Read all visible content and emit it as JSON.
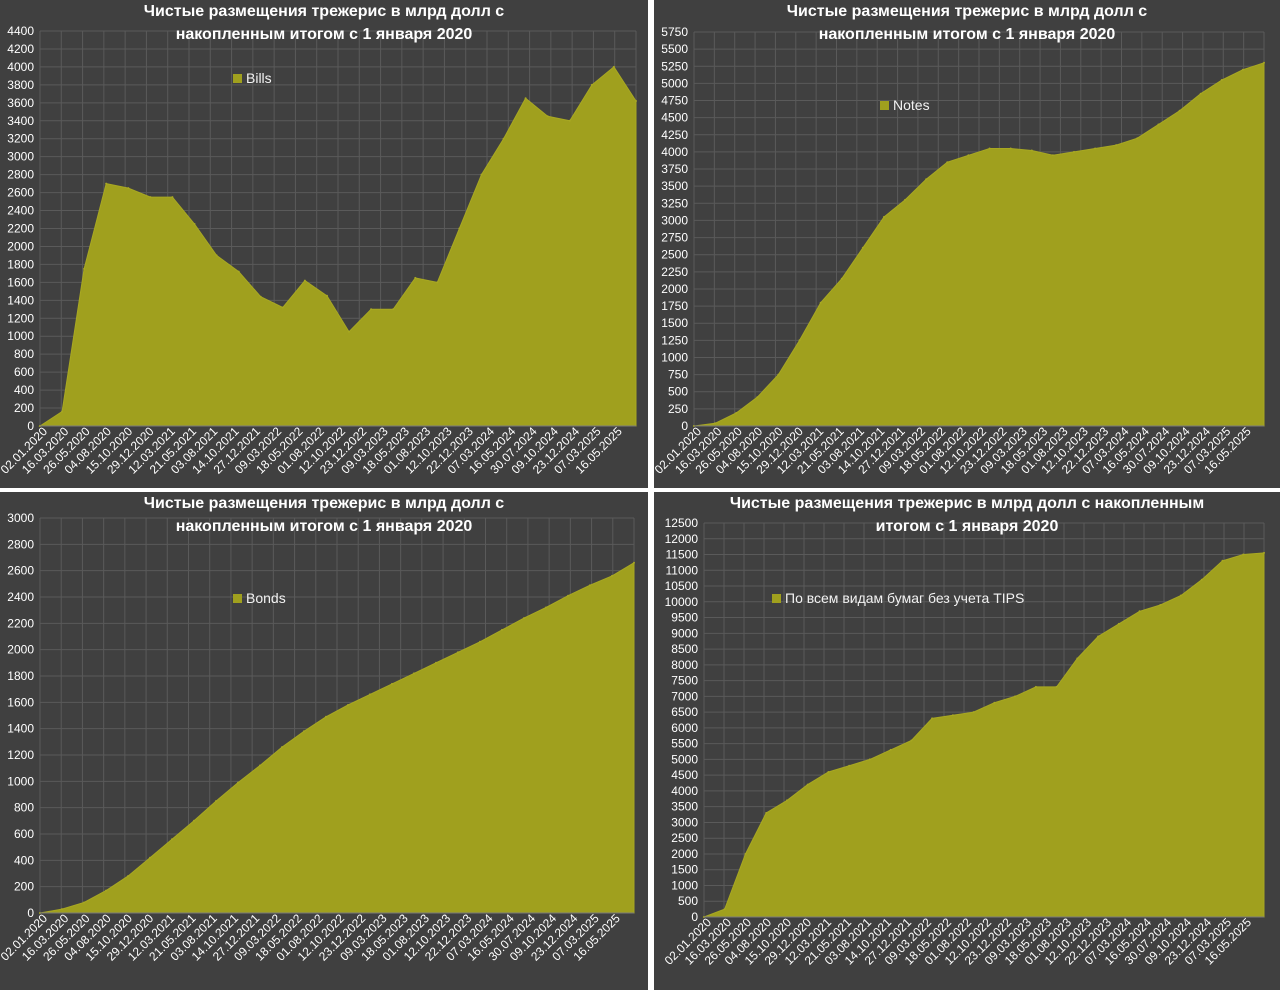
{
  "colors": {
    "panel_bg": "#404040",
    "fill": "#a0a01e",
    "grid": "#5a5a5a",
    "text": "#ffffff"
  },
  "chart_data": [
    {
      "type": "area",
      "title": "Чистые размещения трежерис в млрд долл с накопленным итогом с 1 января 2020",
      "legend": "Bills",
      "legend_position": "top-left",
      "grid": true,
      "ylim": [
        0,
        4400
      ],
      "ytick_step": 200,
      "x_tick_labels": [
        "02.01.2020",
        "16.03.2020",
        "26.05.2020",
        "04.08.2020",
        "15.10.2020",
        "29.12.2020",
        "12.03.2021",
        "21.05.2021",
        "03.08.2021",
        "14.10.2021",
        "27.12.2021",
        "09.03.2022",
        "18.05.2022",
        "01.08.2022",
        "12.10.2022",
        "23.12.2022",
        "09.03.2023",
        "18.05.2023",
        "01.08.2023",
        "12.10.2023",
        "22.12.2023",
        "07.03.2024",
        "16.05.2024",
        "30.07.2024",
        "09.10.2024",
        "23.12.2024",
        "07.03.2025",
        "16.05.2025"
      ],
      "series": [
        {
          "name": "Bills",
          "values": [
            0,
            160,
            1750,
            2700,
            2650,
            2550,
            2550,
            2250,
            1900,
            1720,
            1440,
            1320,
            1620,
            1450,
            1050,
            1300,
            1300,
            1650,
            1600,
            2200,
            2800,
            3200,
            3650,
            3450,
            3400,
            3800,
            4000,
            3620
          ]
        }
      ]
    },
    {
      "type": "area",
      "title": "Чистые размещения трежерис в млрд долл с накопленным итогом с 1 января 2020",
      "legend": "Notes",
      "legend_position": "top-left",
      "grid": true,
      "ylim": [
        0,
        5750
      ],
      "ytick_step": 250,
      "x_tick_labels": [
        "02.01.2020",
        "16.03.2020",
        "26.05.2020",
        "04.08.2020",
        "15.10.2020",
        "29.12.2020",
        "12.03.2021",
        "21.05.2021",
        "03.08.2021",
        "14.10.2021",
        "27.12.2021",
        "09.03.2022",
        "18.05.2022",
        "01.08.2022",
        "12.10.2022",
        "23.12.2022",
        "09.03.2023",
        "18.05.2023",
        "01.08.2023",
        "12.10.2023",
        "22.12.2023",
        "07.03.2024",
        "16.05.2024",
        "30.07.2024",
        "09.10.2024",
        "23.12.2024",
        "07.03.2025",
        "16.05.2025"
      ],
      "series": [
        {
          "name": "Notes",
          "values": [
            0,
            40,
            190,
            420,
            750,
            1250,
            1800,
            2150,
            2600,
            3050,
            3300,
            3600,
            3850,
            3950,
            4050,
            4050,
            4020,
            3950,
            4000,
            4050,
            4100,
            4200,
            4400,
            4600,
            4850,
            5050,
            5200,
            5300
          ]
        }
      ]
    },
    {
      "type": "area",
      "title": "Чистые размещения трежерис в млрд долл с накопленным итогом с 1 января 2020",
      "legend": "Bonds",
      "legend_position": "top-left",
      "grid": true,
      "ylim": [
        0,
        3000
      ],
      "ytick_step": 200,
      "x_tick_labels": [
        "02.01.2020",
        "16.03.2020",
        "26.05.2020",
        "04.08.2020",
        "15.10.2020",
        "29.12.2020",
        "12.03.2021",
        "21.05.2021",
        "03.08.2021",
        "14.10.2021",
        "27.12.2021",
        "09.03.2022",
        "18.05.2022",
        "01.08.2022",
        "12.10.2022",
        "23.12.2022",
        "09.03.2023",
        "18.05.2023",
        "01.08.2023",
        "12.10.2023",
        "22.12.2023",
        "07.03.2024",
        "16.05.2024",
        "30.07.2024",
        "09.10.2024",
        "23.12.2024",
        "07.03.2025",
        "16.05.2025"
      ],
      "series": [
        {
          "name": "Bonds",
          "values": [
            0,
            30,
            80,
            170,
            280,
            420,
            560,
            700,
            850,
            990,
            1120,
            1260,
            1380,
            1490,
            1580,
            1660,
            1740,
            1820,
            1900,
            1980,
            2060,
            2150,
            2240,
            2320,
            2410,
            2490,
            2560,
            2660
          ]
        }
      ]
    },
    {
      "type": "area",
      "title": "Чистые размещения трежерис в млрд долл с накопленным итогом с 1 января 2020",
      "legend": "По всем видам бумаг без учета TIPS",
      "legend_position": "top-left",
      "grid": true,
      "ylim": [
        0,
        12500
      ],
      "ytick_step": 500,
      "x_tick_labels": [
        "02.01.2020",
        "16.03.2020",
        "26.05.2020",
        "04.08.2020",
        "15.10.2020",
        "29.12.2020",
        "12.03.2021",
        "21.05.2021",
        "03.08.2021",
        "14.10.2021",
        "27.12.2021",
        "09.03.2022",
        "18.05.2022",
        "01.08.2022",
        "12.10.2022",
        "23.12.2022",
        "09.03.2023",
        "18.05.2023",
        "01.08.2023",
        "12.10.2023",
        "22.12.2023",
        "07.03.2024",
        "16.05.2024",
        "30.07.2024",
        "09.10.2024",
        "23.12.2024",
        "07.03.2025",
        "16.05.2025"
      ],
      "series": [
        {
          "name": "По всем видам бумаг без учета TIPS",
          "values": [
            0,
            250,
            2000,
            3300,
            3700,
            4200,
            4600,
            4800,
            5000,
            5300,
            5600,
            6300,
            6400,
            6500,
            6800,
            7000,
            7300,
            7300,
            8200,
            8900,
            9300,
            9700,
            9900,
            10200,
            10700,
            11300,
            11500,
            11550
          ]
        }
      ]
    }
  ]
}
